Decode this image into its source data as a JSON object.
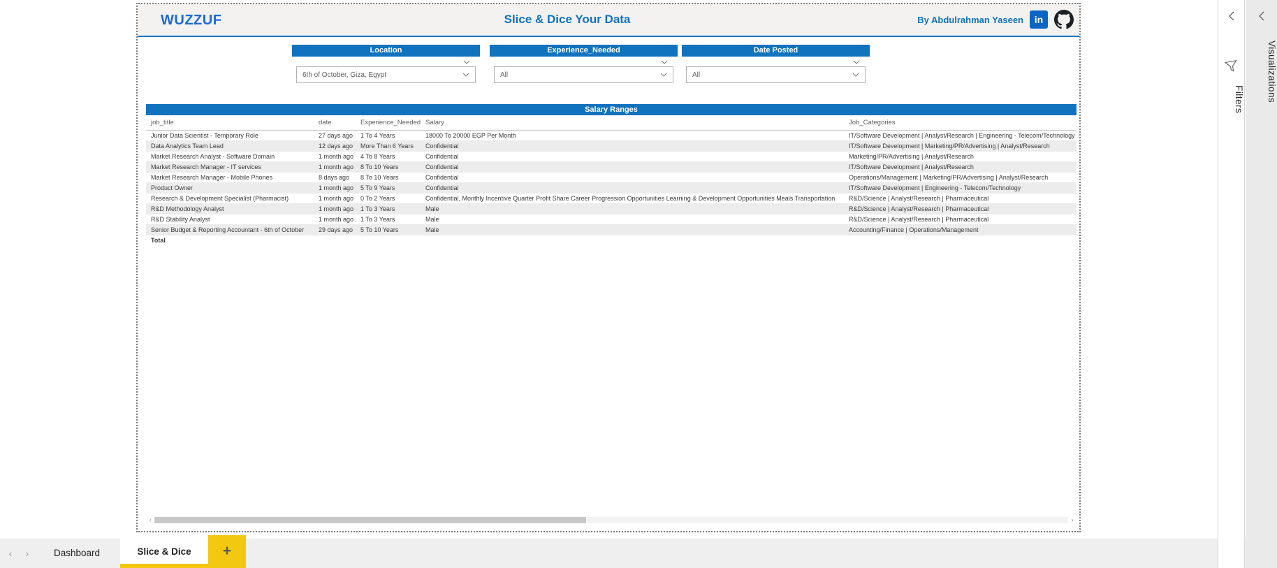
{
  "header": {
    "logo": "WUZZUF",
    "title": "Slice & Dice Your Data",
    "byline": "By Abdulrahman Yaseen"
  },
  "icons": {
    "linkedin_label": "in",
    "scroll_left": "‹",
    "scroll_right": "›",
    "tab_prev": "‹",
    "tab_next": "›",
    "add_tab": "+"
  },
  "slicers": [
    {
      "title": "Location",
      "value": "6th of October, Giza, Egypt"
    },
    {
      "title": "Experience_Needed",
      "value": "All"
    },
    {
      "title": "Date Posted",
      "value": "All"
    }
  ],
  "table": {
    "title": "Salary Ranges",
    "columns": [
      "job_title",
      "date",
      "Experience_Needed",
      "Salary",
      "Job_Categories"
    ],
    "rows": [
      [
        "Junior Data Scientist - Temporary Role",
        "27 days ago",
        "1 To 4 Years",
        "18000 To 20000 EGP Per Month",
        "IT/Software Development | Analyst/Research | Engineering - Telecom/Technology"
      ],
      [
        "Data Analytics Team Lead",
        "12 days ago",
        "More Than 6 Years",
        "Confidential",
        "IT/Software Development | Marketing/PR/Advertising | Analyst/Research"
      ],
      [
        "Market Research Analyst - Software Domain",
        "1 month ago",
        "4 To 8 Years",
        "Confidential",
        "Marketing/PR/Advertising | Analyst/Research"
      ],
      [
        "Market Research Manager - IT services",
        "1 month ago",
        "8 To 10 Years",
        "Confidential",
        "IT/Software Development | Analyst/Research"
      ],
      [
        "Market Research Manager - Mobile Phones",
        "8 days ago",
        "8 To 10 Years",
        "Confidential",
        "Operations/Management | Marketing/PR/Advertising | Analyst/Research"
      ],
      [
        "Product Owner",
        "1 month ago",
        "5 To 9 Years",
        "Confidential",
        "IT/Software Development | Engineering - Telecom/Technology"
      ],
      [
        "Research & Development Specialist (Pharmacist)",
        "1 month ago",
        "0 To 2 Years",
        "Confidential, Monthly Incentive Quarter Profit Share Career Progression Opportunities Learning & Development Opportunities Meals Transportation",
        "R&D/Science | Analyst/Research | Pharmaceutical"
      ],
      [
        "R&D Methodology Analyst",
        "1 month ago",
        "1 To 3 Years",
        "Male",
        "R&D/Science | Analyst/Research | Pharmaceutical"
      ],
      [
        "R&D Stability Analyst",
        "1 month ago",
        "1 To 3 Years",
        "Male",
        "R&D/Science | Analyst/Research | Pharmaceutical"
      ],
      [
        "Senior Budget & Reporting Accountant - 6th of October",
        "29 days ago",
        "5 To 10 Years",
        "Male",
        "Accounting/Finance | Operations/Management"
      ]
    ],
    "total_label": "Total"
  },
  "tabs": {
    "items": [
      {
        "label": "Dashboard",
        "active": false
      },
      {
        "label": "Slice & Dice",
        "active": true
      }
    ]
  },
  "panels": {
    "filters_label": "Filters",
    "visualizations_label": "Visualizations"
  },
  "colors": {
    "accent_blue": "#1172BD",
    "brand_blue": "#1C69D4",
    "linkedin_blue": "#0A66C2",
    "tab_yellow": "#F2C811",
    "alt_row_grey": "#ECECEC"
  }
}
